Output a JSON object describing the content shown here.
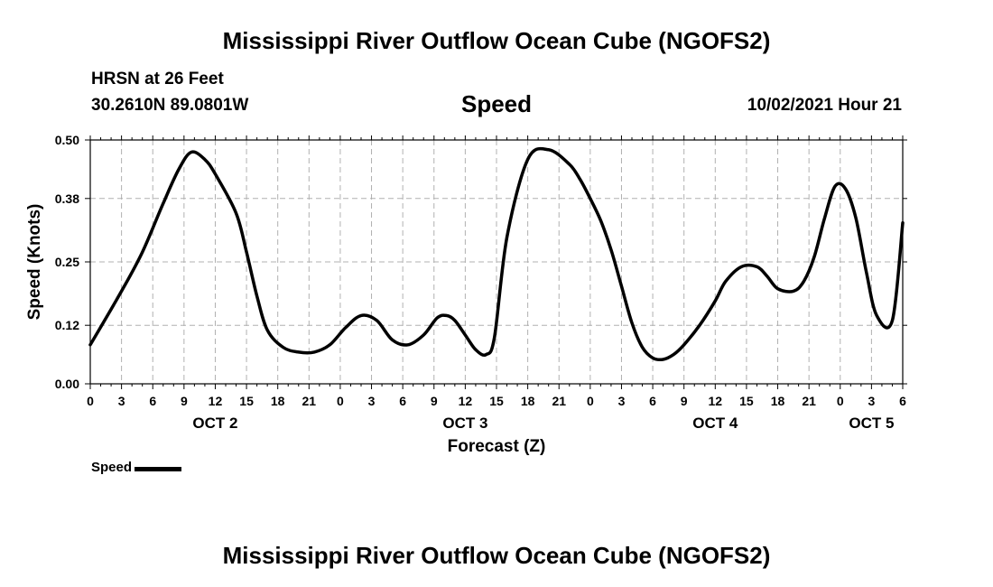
{
  "title_top": "Mississippi River Outflow Ocean Cube (NGOFS2)",
  "title_bottom": "Mississippi River Outflow Ocean Cube (NGOFS2)",
  "station": {
    "name": "HRSN at 26 Feet",
    "coords": "30.2610N  89.0801W"
  },
  "plot_title": "Speed",
  "forecast_stamp": "10/02/2021 Hour 21",
  "legend": {
    "label": "Speed"
  },
  "colors": {
    "line": "#000000",
    "grid": "#b0b0b0",
    "background": "#ffffff"
  },
  "chart_data": {
    "type": "line",
    "title": "Speed",
    "xlabel": "Forecast (Z)",
    "ylabel": "Speed (Knots)",
    "ylim": [
      0,
      0.5
    ],
    "xlim": [
      0,
      78
    ],
    "x_unit": "hours from OCT 2 00Z",
    "yticks": [
      0.0,
      0.12,
      0.25,
      0.38,
      0.5
    ],
    "ytick_labels": [
      "0.00",
      "0.12",
      "0.25",
      "0.38",
      "0.50"
    ],
    "xtick_labels": [
      "0",
      "3",
      "6",
      "9",
      "12",
      "15",
      "18",
      "21",
      "0",
      "3",
      "6",
      "9",
      "12",
      "15",
      "18",
      "21",
      "0",
      "3",
      "6",
      "9",
      "12",
      "15",
      "18",
      "21",
      "0",
      "3",
      "6"
    ],
    "day_labels": [
      {
        "label": "OCT 2",
        "hour": 12
      },
      {
        "label": "OCT 3",
        "hour": 36
      },
      {
        "label": "OCT 4",
        "hour": 60
      },
      {
        "label": "OCT 5",
        "hour": 75
      }
    ],
    "grid": true,
    "legend_position": "bottom-left",
    "series": [
      {
        "name": "Speed",
        "x": [
          0,
          3,
          5,
          7,
          8.5,
          9.7,
          11,
          12,
          14,
          15,
          16,
          17,
          18.5,
          20,
          21.5,
          23,
          24.5,
          26,
          27.5,
          29,
          30.5,
          32,
          33.3,
          34.2,
          35,
          36,
          37,
          38,
          38.8,
          40,
          42,
          44,
          46,
          47,
          48,
          49,
          50,
          51,
          52,
          53,
          54,
          55,
          56,
          57,
          58.5,
          60,
          61,
          62.5,
          64,
          65,
          66,
          67.5,
          68.5,
          69.5,
          70.5,
          71.5,
          72.5,
          73.5,
          74.5,
          75.5,
          77,
          78
        ],
        "y": [
          0.08,
          0.19,
          0.27,
          0.37,
          0.44,
          0.475,
          0.46,
          0.43,
          0.35,
          0.27,
          0.18,
          0.11,
          0.075,
          0.065,
          0.065,
          0.08,
          0.115,
          0.14,
          0.13,
          0.09,
          0.08,
          0.1,
          0.135,
          0.14,
          0.13,
          0.1,
          0.07,
          0.06,
          0.095,
          0.3,
          0.46,
          0.48,
          0.45,
          0.42,
          0.38,
          0.335,
          0.275,
          0.2,
          0.125,
          0.075,
          0.053,
          0.05,
          0.06,
          0.08,
          0.12,
          0.17,
          0.21,
          0.24,
          0.24,
          0.22,
          0.195,
          0.19,
          0.21,
          0.26,
          0.34,
          0.405,
          0.4,
          0.34,
          0.23,
          0.14,
          0.13,
          0.33
        ]
      }
    ]
  }
}
